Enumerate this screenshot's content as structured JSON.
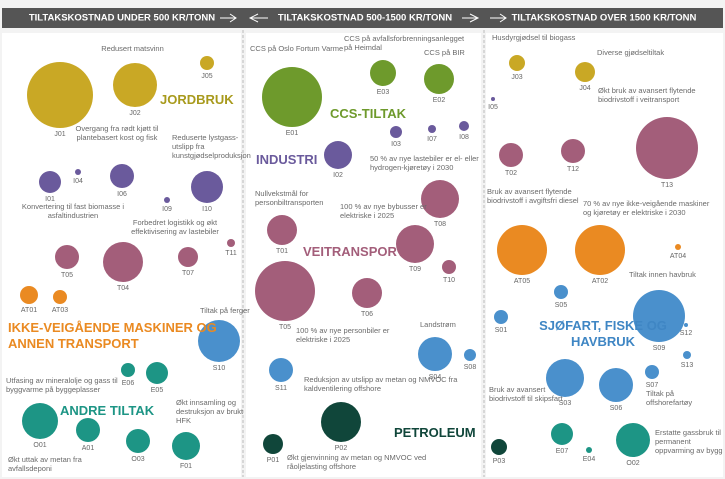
{
  "headers": [
    "TILTAKSKOSTNAD UNDER 500 KR/TONN",
    "TILTAKSKOSTNAD 500-1500 KR/TONN",
    "TILTAKSKOSTNAD OVER 1500 KR/TONN"
  ],
  "groups": [
    {
      "label": "JORDBRUK",
      "color": "#a89a1c"
    },
    {
      "label": "CCS-TILTAK",
      "color": "#6e9a2c"
    },
    {
      "label": "INDUSTRI",
      "color": "#6a5a9c"
    },
    {
      "label": "VEITRANSPORT",
      "color": "#a35e7a"
    },
    {
      "label": "IKKE-VEIGÅENDE MASKINER OG ANNEN TRANSPORT",
      "color": "#ea8a22"
    },
    {
      "label": "SJØFART, FISKE OG HAVBRUK",
      "color": "#3f86c4"
    },
    {
      "label": "ANDRE TILTAK",
      "color": "#1d9585"
    },
    {
      "label": "PETROLEUM",
      "color": "#10463a"
    }
  ],
  "bubbles": [
    {
      "code": "J01",
      "value": 33,
      "color": "#c9a825"
    },
    {
      "code": "J02",
      "value": 22,
      "color": "#c9a825"
    },
    {
      "code": "J05",
      "value": 7,
      "color": "#c9a825"
    },
    {
      "code": "I01",
      "value": 11,
      "color": "#6a5a9c"
    },
    {
      "code": "I04",
      "value": 3,
      "color": "#6a5a9c"
    },
    {
      "code": "I06",
      "value": 12,
      "color": "#6a5a9c"
    },
    {
      "code": "I09",
      "value": 3,
      "color": "#6a5a9c"
    },
    {
      "code": "I10",
      "value": 16,
      "color": "#6a5a9c"
    },
    {
      "code": "T05",
      "value": 12,
      "color": "#a35e7a"
    },
    {
      "code": "T04",
      "value": 20,
      "color": "#a35e7a"
    },
    {
      "code": "T07",
      "value": 10,
      "color": "#a35e7a"
    },
    {
      "code": "T11",
      "value": 4,
      "color": "#a35e7a"
    },
    {
      "code": "AT01",
      "value": 9,
      "color": "#ea8a22"
    },
    {
      "code": "AT03",
      "value": 7,
      "color": "#ea8a22"
    },
    {
      "code": "S10",
      "value": 21,
      "color": "#4a90cc"
    },
    {
      "code": "E06",
      "value": 7,
      "color": "#1d9585"
    },
    {
      "code": "E05",
      "value": 11,
      "color": "#1d9585"
    },
    {
      "code": "O01",
      "value": 18,
      "color": "#1d9585"
    },
    {
      "code": "A01",
      "value": 12,
      "color": "#1d9585"
    },
    {
      "code": "O03",
      "value": 12,
      "color": "#1d9585"
    },
    {
      "code": "F01",
      "value": 14,
      "color": "#1d9585"
    },
    {
      "code": "E01",
      "value": 30,
      "color": "#6e9a2c"
    },
    {
      "code": "E03",
      "value": 13,
      "color": "#6e9a2c"
    },
    {
      "code": "E02",
      "value": 15,
      "color": "#6e9a2c"
    },
    {
      "code": "I02",
      "value": 14,
      "color": "#6a5a9c"
    },
    {
      "code": "I03",
      "value": 6,
      "color": "#6a5a9c"
    },
    {
      "code": "I07",
      "value": 4,
      "color": "#6a5a9c"
    },
    {
      "code": "I08",
      "value": 5,
      "color": "#6a5a9c"
    },
    {
      "code": "T01",
      "value": 15,
      "color": "#a35e7a"
    },
    {
      "code": "T08",
      "value": 19,
      "color": "#a35e7a"
    },
    {
      "code": "T09",
      "value": 19,
      "color": "#a35e7a"
    },
    {
      "code": "T10",
      "value": 7,
      "color": "#a35e7a"
    },
    {
      "code": "T05",
      "value": 30,
      "color": "#a35e7a"
    },
    {
      "code": "T06",
      "value": 15,
      "color": "#a35e7a"
    },
    {
      "code": "S11",
      "value": 12,
      "color": "#4a90cc"
    },
    {
      "code": "S04",
      "value": 17,
      "color": "#4a90cc"
    },
    {
      "code": "S08",
      "value": 6,
      "color": "#4a90cc"
    },
    {
      "code": "P02",
      "value": 20,
      "color": "#10463a"
    },
    {
      "code": "P01",
      "value": 10,
      "color": "#10463a"
    },
    {
      "code": "J03",
      "value": 8,
      "color": "#c9a825"
    },
    {
      "code": "J04",
      "value": 10,
      "color": "#c9a825"
    },
    {
      "code": "I05",
      "value": 2,
      "color": "#6a5a9c"
    },
    {
      "code": "T02",
      "value": 12,
      "color": "#a35e7a"
    },
    {
      "code": "T12",
      "value": 12,
      "color": "#a35e7a"
    },
    {
      "code": "T13",
      "value": 31,
      "color": "#a35e7a"
    },
    {
      "code": "AT05",
      "value": 25,
      "color": "#ea8a22"
    },
    {
      "code": "AT02",
      "value": 25,
      "color": "#ea8a22"
    },
    {
      "code": "AT04",
      "value": 3,
      "color": "#ea8a22"
    },
    {
      "code": "S05",
      "value": 7,
      "color": "#4a90cc"
    },
    {
      "code": "S01",
      "value": 7,
      "color": "#4a90cc"
    },
    {
      "code": "S09",
      "value": 26,
      "color": "#4a90cc"
    },
    {
      "code": "S12",
      "value": 2,
      "color": "#4a90cc"
    },
    {
      "code": "S13",
      "value": 4,
      "color": "#4a90cc"
    },
    {
      "code": "S03",
      "value": 19,
      "color": "#4a90cc"
    },
    {
      "code": "S07",
      "value": 7,
      "color": "#4a90cc"
    },
    {
      "code": "S06",
      "value": 17,
      "color": "#4a90cc"
    },
    {
      "code": "P03",
      "value": 8,
      "color": "#10463a"
    },
    {
      "code": "E07",
      "value": 11,
      "color": "#1d9585"
    },
    {
      "code": "E04",
      "value": 3,
      "color": "#1d9585"
    },
    {
      "code": "O02",
      "value": 17,
      "color": "#1d9585"
    }
  ],
  "annotations": [
    "Redusert matsvinn",
    "Overgang fra rødt kjøtt til plantebasert kost og fisk",
    "Reduserte lystgass-utslipp fra kunstgjødselproduksjon",
    "Konvertering til fast biomasse i asfaltindustrien",
    "Forbedret logistikk og økt effektivisering av lastebiler",
    "Tiltak på ferger",
    "Utfasing av mineralolje og gass til byggvarme på byggeplasser",
    "Økt innsamling og destruksjon av brukt HFK",
    "Økt uttak av metan fra avfallsdeponi",
    "CCS på Oslo Fortum Varme",
    "CCS på avfallsforbrenningsanlegget på Heimdal",
    "CCS på BIR",
    "50 % av nye lastebiler er el- eller hydrogen-kjøretøy i 2030",
    "Nullvekstmål for personbiltransporten",
    "100 % av nye bybusser er elektriske i 2025",
    "100 % av nye personbiler er elektriske i 2025",
    "Landstrøm",
    "Reduksjon av utslipp av metan og NMVOC fra kaldventilering offshore",
    "Økt gjenvinning av metan og NMVOC ved råoljelasting offshore",
    "Husdyrgjødsel til biogass",
    "Diverse gjødseltiltak",
    "Økt bruk av avansert flytende biodrivstoff i veitransport",
    "Bruk av avansert flytende biodrivstoff i avgiftsfri diesel",
    "70 % av nye ikke-veigående maskiner og kjøretøy er elektriske i 2030",
    "Tiltak innen havbruk",
    "Bruk av avansert biodrivstoff til skipsfart",
    "Tiltak på offshorefartøy",
    "Erstatte gassbruk til permanent oppvarming av bygg"
  ]
}
